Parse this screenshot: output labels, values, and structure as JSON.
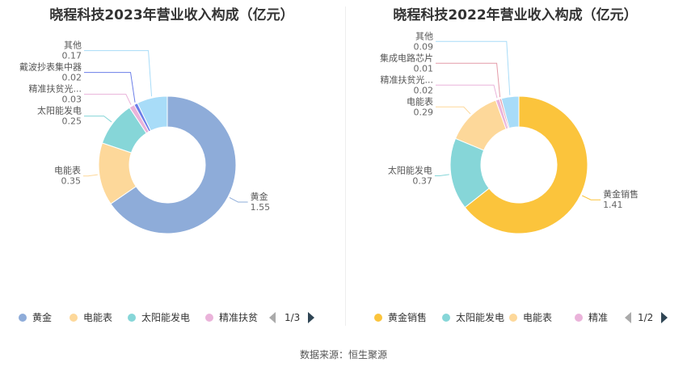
{
  "chart_data": [
    {
      "type": "pie",
      "title": "晓程科技2023年营业收入构成（亿元）",
      "slices": [
        {
          "label": "黄金",
          "value": 1.55,
          "value_text": "1.55",
          "color": "#8eacd9"
        },
        {
          "label": "电能表",
          "value": 0.35,
          "value_text": "0.35",
          "color": "#fdd89a"
        },
        {
          "label": "太阳能发电",
          "value": 0.25,
          "value_text": "0.25",
          "color": "#86d6d8"
        },
        {
          "label": "精准扶贫光...",
          "value": 0.03,
          "value_text": "0.03",
          "color": "#eab3da"
        },
        {
          "label": "戴波抄表集中器",
          "value": 0.02,
          "value_text": "0.02",
          "color": "#6b7ee8"
        },
        {
          "label": "其他",
          "value": 0.17,
          "value_text": "0.17",
          "color": "#a8dcf8"
        }
      ],
      "legend": {
        "items": [
          {
            "label": "黄金",
            "color": "#8eacd9"
          },
          {
            "label": "电能表",
            "color": "#fdd89a"
          },
          {
            "label": "太阳能发电",
            "color": "#86d6d8"
          },
          {
            "label": "精准扶贫",
            "color": "#eab3da"
          }
        ],
        "page": "1/3"
      }
    },
    {
      "type": "pie",
      "title": "晓程科技2022年营业收入构成（亿元）",
      "slices": [
        {
          "label": "黄金销售",
          "value": 1.41,
          "value_text": "1.41",
          "color": "#fbc43c"
        },
        {
          "label": "太阳能发电",
          "value": 0.37,
          "value_text": "0.37",
          "color": "#86d6d8"
        },
        {
          "label": "电能表",
          "value": 0.29,
          "value_text": "0.29",
          "color": "#fdd89a"
        },
        {
          "label": "精准扶贫光...",
          "value": 0.02,
          "value_text": "0.02",
          "color": "#eab3da"
        },
        {
          "label": "集成电路芯片",
          "value": 0.01,
          "value_text": "0.01",
          "color": "#e49aa8"
        },
        {
          "label": "其他",
          "value": 0.09,
          "value_text": "0.09",
          "color": "#a8dcf8"
        }
      ],
      "legend": {
        "items": [
          {
            "label": "黄金销售",
            "color": "#fbc43c"
          },
          {
            "label": "太阳能发电",
            "color": "#86d6d8"
          },
          {
            "label": "电能表",
            "color": "#fdd89a"
          },
          {
            "label": "精准",
            "color": "#eab3da"
          }
        ],
        "page": "1/2"
      }
    }
  ],
  "source": "数据来源：恒生聚源"
}
